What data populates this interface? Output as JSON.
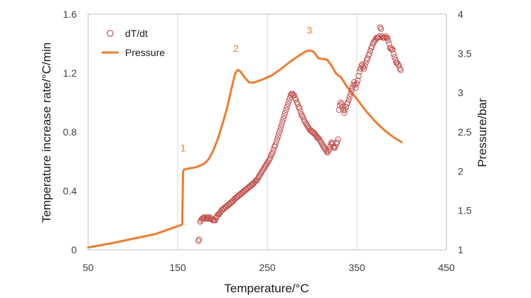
{
  "chart_data": {
    "type": "scatter",
    "xlabel": "Temperature/°C",
    "ylabel": "Temperature increase rate/°C/min",
    "y2label": "Pressure/bar",
    "xlim": [
      50,
      450
    ],
    "ylim": [
      0,
      1.6
    ],
    "y2lim": [
      1,
      4
    ],
    "x_ticks": [
      "50",
      "150",
      "250",
      "350",
      "450"
    ],
    "y_ticks": [
      "0",
      "0.4",
      "0.8",
      "1.2",
      "1.6"
    ],
    "y2_ticks": [
      "1",
      "1.5",
      "2",
      "2.5",
      "3",
      "3.5",
      "4"
    ],
    "grid": "vertical",
    "legend_position": "top-left",
    "colors": {
      "dTdt": "#c0504d",
      "pressure": "#ed7d31"
    },
    "annotations": [
      {
        "text": "1",
        "x": 156,
        "y2": 2.25
      },
      {
        "text": "2",
        "x": 215,
        "y2": 3.52
      },
      {
        "text": "3",
        "x": 297,
        "y2": 3.75
      }
    ],
    "series": [
      {
        "name": "dT/dt",
        "marker": "open-circle",
        "axis": "left",
        "points": [
          [
            173,
            0.06
          ],
          [
            174,
            0.07
          ],
          [
            175,
            0.19
          ],
          [
            176,
            0.2
          ],
          [
            177,
            0.21
          ],
          [
            178,
            0.21
          ],
          [
            179,
            0.22
          ],
          [
            180,
            0.22
          ],
          [
            181,
            0.21
          ],
          [
            182,
            0.22
          ],
          [
            183,
            0.21
          ],
          [
            184,
            0.22
          ],
          [
            185,
            0.21
          ],
          [
            186,
            0.22
          ],
          [
            187,
            0.21
          ],
          [
            188,
            0.21
          ],
          [
            189,
            0.2
          ],
          [
            190,
            0.2
          ],
          [
            191,
            0.2
          ],
          [
            192,
            0.2
          ],
          [
            193,
            0.22
          ],
          [
            194,
            0.23
          ],
          [
            195,
            0.24
          ],
          [
            196,
            0.24
          ],
          [
            197,
            0.25
          ],
          [
            198,
            0.26
          ],
          [
            199,
            0.27
          ],
          [
            200,
            0.27
          ],
          [
            201,
            0.28
          ],
          [
            202,
            0.28
          ],
          [
            203,
            0.29
          ],
          [
            204,
            0.29
          ],
          [
            205,
            0.3
          ],
          [
            206,
            0.3
          ],
          [
            207,
            0.31
          ],
          [
            208,
            0.31
          ],
          [
            209,
            0.32
          ],
          [
            210,
            0.32
          ],
          [
            211,
            0.33
          ],
          [
            212,
            0.33
          ],
          [
            213,
            0.34
          ],
          [
            214,
            0.35
          ],
          [
            215,
            0.35
          ],
          [
            216,
            0.36
          ],
          [
            217,
            0.36
          ],
          [
            218,
            0.37
          ],
          [
            219,
            0.37
          ],
          [
            220,
            0.38
          ],
          [
            221,
            0.38
          ],
          [
            222,
            0.39
          ],
          [
            223,
            0.39
          ],
          [
            224,
            0.4
          ],
          [
            225,
            0.4
          ],
          [
            226,
            0.41
          ],
          [
            227,
            0.41
          ],
          [
            228,
            0.42
          ],
          [
            229,
            0.42
          ],
          [
            230,
            0.43
          ],
          [
            231,
            0.43
          ],
          [
            232,
            0.44
          ],
          [
            233,
            0.44
          ],
          [
            234,
            0.45
          ],
          [
            235,
            0.45
          ],
          [
            236,
            0.46
          ],
          [
            237,
            0.47
          ],
          [
            238,
            0.47
          ],
          [
            239,
            0.48
          ],
          [
            240,
            0.49
          ],
          [
            241,
            0.5
          ],
          [
            242,
            0.51
          ],
          [
            243,
            0.52
          ],
          [
            244,
            0.53
          ],
          [
            245,
            0.54
          ],
          [
            246,
            0.55
          ],
          [
            247,
            0.56
          ],
          [
            248,
            0.57
          ],
          [
            249,
            0.58
          ],
          [
            250,
            0.59
          ],
          [
            251,
            0.6
          ],
          [
            252,
            0.61
          ],
          [
            253,
            0.62
          ],
          [
            254,
            0.64
          ],
          [
            255,
            0.65
          ],
          [
            256,
            0.66
          ],
          [
            257,
            0.68
          ],
          [
            258,
            0.7
          ],
          [
            259,
            0.71
          ],
          [
            260,
            0.73
          ],
          [
            261,
            0.75
          ],
          [
            262,
            0.77
          ],
          [
            263,
            0.79
          ],
          [
            264,
            0.81
          ],
          [
            265,
            0.83
          ],
          [
            266,
            0.85
          ],
          [
            267,
            0.87
          ],
          [
            268,
            0.89
          ],
          [
            269,
            0.91
          ],
          [
            270,
            0.93
          ],
          [
            271,
            0.95
          ],
          [
            272,
            0.97
          ],
          [
            273,
            0.99
          ],
          [
            274,
            1.01
          ],
          [
            275,
            1.03
          ],
          [
            276,
            1.05
          ],
          [
            277,
            1.06
          ],
          [
            278,
            1.06
          ],
          [
            279,
            1.05
          ],
          [
            280,
            1.05
          ],
          [
            281,
            1.03
          ],
          [
            282,
            1.02
          ],
          [
            283,
            1.0
          ],
          [
            284,
            0.99
          ],
          [
            285,
            0.97
          ],
          [
            286,
            0.96
          ],
          [
            287,
            0.94
          ],
          [
            288,
            0.92
          ],
          [
            289,
            0.91
          ],
          [
            290,
            0.9
          ],
          [
            291,
            0.88
          ],
          [
            292,
            0.87
          ],
          [
            293,
            0.86
          ],
          [
            294,
            0.85
          ],
          [
            295,
            0.84
          ],
          [
            296,
            0.83
          ],
          [
            297,
            0.82
          ],
          [
            298,
            0.81
          ],
          [
            299,
            0.81
          ],
          [
            300,
            0.8
          ],
          [
            301,
            0.8
          ],
          [
            302,
            0.79
          ],
          [
            303,
            0.79
          ],
          [
            304,
            0.78
          ],
          [
            305,
            0.77
          ],
          [
            306,
            0.76
          ],
          [
            307,
            0.76
          ],
          [
            308,
            0.75
          ],
          [
            309,
            0.74
          ],
          [
            310,
            0.73
          ],
          [
            311,
            0.72
          ],
          [
            312,
            0.71
          ],
          [
            313,
            0.7
          ],
          [
            314,
            0.69
          ],
          [
            315,
            0.68
          ],
          [
            316,
            0.67
          ],
          [
            317,
            0.66
          ],
          [
            318,
            0.67
          ],
          [
            319,
            0.68
          ],
          [
            320,
            0.7
          ],
          [
            321,
            0.72
          ],
          [
            322,
            0.73
          ],
          [
            323,
            0.72
          ],
          [
            324,
            0.7
          ],
          [
            325,
            0.69
          ],
          [
            326,
            0.7
          ],
          [
            327,
            0.72
          ],
          [
            328,
            0.73
          ],
          [
            329,
            0.75
          ],
          [
            330,
            0.95
          ],
          [
            331,
            0.98
          ],
          [
            332,
            1.0
          ],
          [
            333,
            0.99
          ],
          [
            334,
            0.97
          ],
          [
            335,
            0.95
          ],
          [
            336,
            0.93
          ],
          [
            337,
            0.95
          ],
          [
            338,
            0.97
          ],
          [
            339,
            0.99
          ],
          [
            340,
            1.0
          ],
          [
            341,
            1.02
          ],
          [
            342,
            1.04
          ],
          [
            343,
            1.06
          ],
          [
            344,
            1.08
          ],
          [
            345,
            1.1
          ],
          [
            346,
            1.12
          ],
          [
            347,
            1.14
          ],
          [
            348,
            1.12
          ],
          [
            349,
            1.1
          ],
          [
            350,
            1.13
          ],
          [
            351,
            1.15
          ],
          [
            352,
            1.18
          ],
          [
            353,
            1.21
          ],
          [
            354,
            1.23
          ],
          [
            355,
            1.25
          ],
          [
            356,
            1.26
          ],
          [
            357,
            1.24
          ],
          [
            358,
            1.23
          ],
          [
            359,
            1.25
          ],
          [
            360,
            1.27
          ],
          [
            361,
            1.29
          ],
          [
            362,
            1.3
          ],
          [
            363,
            1.32
          ],
          [
            364,
            1.33
          ],
          [
            365,
            1.35
          ],
          [
            366,
            1.37
          ],
          [
            367,
            1.38
          ],
          [
            368,
            1.4
          ],
          [
            369,
            1.41
          ],
          [
            370,
            1.42
          ],
          [
            371,
            1.43
          ],
          [
            372,
            1.44
          ],
          [
            373,
            1.44
          ],
          [
            374,
            1.44
          ],
          [
            375,
            1.45
          ],
          [
            376,
            1.51
          ],
          [
            377,
            1.5
          ],
          [
            378,
            1.45
          ],
          [
            379,
            1.44
          ],
          [
            380,
            1.44
          ],
          [
            381,
            1.44
          ],
          [
            382,
            1.45
          ],
          [
            383,
            1.44
          ],
          [
            384,
            1.44
          ],
          [
            385,
            1.42
          ],
          [
            386,
            1.4
          ],
          [
            387,
            1.37
          ],
          [
            388,
            1.37
          ],
          [
            389,
            1.36
          ],
          [
            390,
            1.36
          ],
          [
            391,
            1.33
          ],
          [
            392,
            1.31
          ],
          [
            393,
            1.29
          ],
          [
            394,
            1.27
          ],
          [
            395,
            1.27
          ],
          [
            396,
            1.26
          ],
          [
            397,
            1.25
          ],
          [
            398,
            1.23
          ],
          [
            399,
            1.22
          ]
        ]
      },
      {
        "name": "Pressure",
        "line": "solid",
        "axis": "right",
        "points": [
          [
            50,
            1.03
          ],
          [
            75,
            1.08
          ],
          [
            100,
            1.14
          ],
          [
            125,
            1.2
          ],
          [
            140,
            1.26
          ],
          [
            155,
            1.32
          ],
          [
            156,
            2.0
          ],
          [
            157,
            2.02
          ],
          [
            160,
            2.03
          ],
          [
            165,
            2.04
          ],
          [
            170,
            2.05
          ],
          [
            175,
            2.07
          ],
          [
            180,
            2.1
          ],
          [
            185,
            2.16
          ],
          [
            190,
            2.27
          ],
          [
            195,
            2.42
          ],
          [
            200,
            2.6
          ],
          [
            205,
            2.8
          ],
          [
            210,
            3.05
          ],
          [
            214,
            3.24
          ],
          [
            217,
            3.29
          ],
          [
            220,
            3.27
          ],
          [
            225,
            3.19
          ],
          [
            230,
            3.13
          ],
          [
            235,
            3.13
          ],
          [
            245,
            3.17
          ],
          [
            255,
            3.22
          ],
          [
            265,
            3.3
          ],
          [
            275,
            3.39
          ],
          [
            285,
            3.47
          ],
          [
            292,
            3.52
          ],
          [
            297,
            3.54
          ],
          [
            302,
            3.52
          ],
          [
            307,
            3.44
          ],
          [
            312,
            3.43
          ],
          [
            317,
            3.42
          ],
          [
            322,
            3.34
          ],
          [
            327,
            3.24
          ],
          [
            332,
            3.2
          ],
          [
            340,
            3.06
          ],
          [
            350,
            2.92
          ],
          [
            360,
            2.77
          ],
          [
            370,
            2.64
          ],
          [
            380,
            2.53
          ],
          [
            390,
            2.44
          ],
          [
            400,
            2.37
          ]
        ]
      }
    ]
  }
}
